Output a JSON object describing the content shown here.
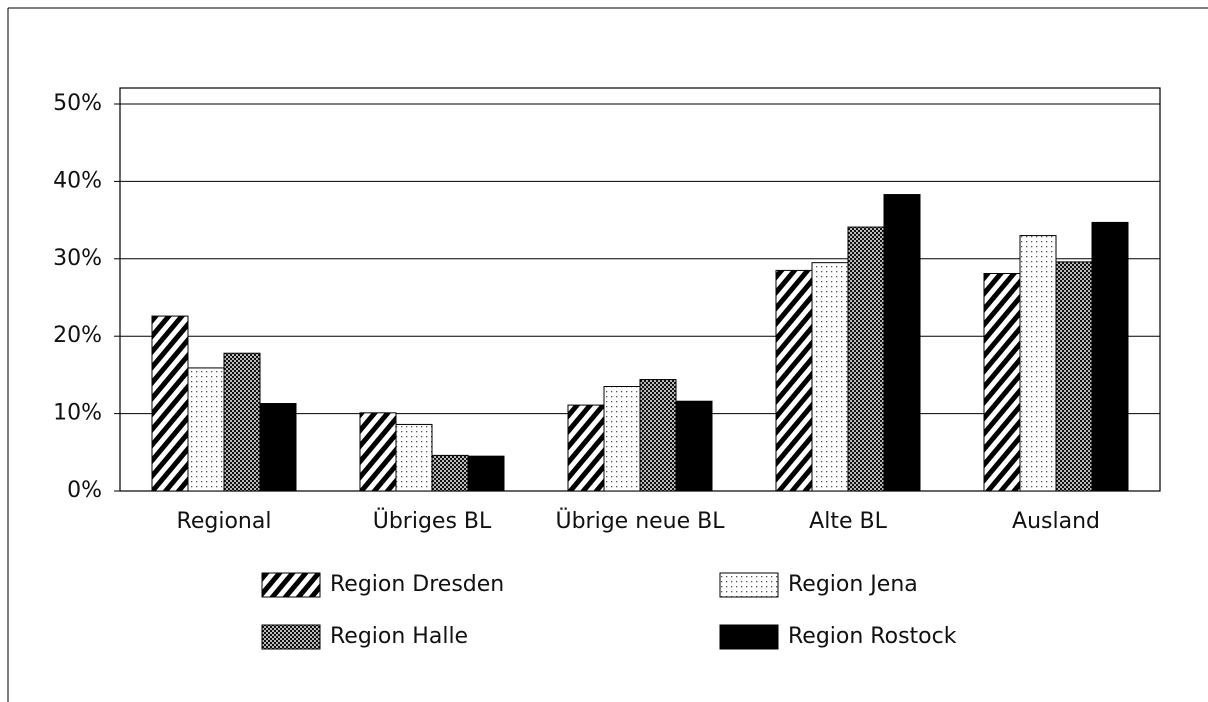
{
  "chart_data": {
    "type": "bar",
    "categories": [
      "Regional",
      "Übriges BL",
      "Übrige neue BL",
      "Alte BL",
      "Ausland"
    ],
    "series": [
      {
        "name": "Region Dresden",
        "color": "#000000",
        "pattern": "hatch",
        "values": [
          22.6,
          10.1,
          11.1,
          28.5,
          28.1
        ]
      },
      {
        "name": "Region Jena",
        "color": "#000000",
        "pattern": "dots",
        "values": [
          15.9,
          8.6,
          13.5,
          29.5,
          33.0
        ]
      },
      {
        "name": "Region Halle",
        "color": "#000000",
        "pattern": "checker",
        "values": [
          17.8,
          4.6,
          14.4,
          34.1,
          29.6
        ]
      },
      {
        "name": "Region Rostock",
        "color": "#000000",
        "pattern": "solid",
        "values": [
          11.3,
          4.5,
          11.6,
          38.3,
          34.7
        ]
      }
    ],
    "ylim": [
      0,
      52
    ],
    "yticks": [
      {
        "value": 0,
        "label": "0%"
      },
      {
        "value": 10,
        "label": "10%"
      },
      {
        "value": 20,
        "label": "20%"
      },
      {
        "value": 30,
        "label": "30%"
      },
      {
        "value": 40,
        "label": "40%"
      },
      {
        "value": 50,
        "label": "50%"
      }
    ],
    "grid": true
  }
}
